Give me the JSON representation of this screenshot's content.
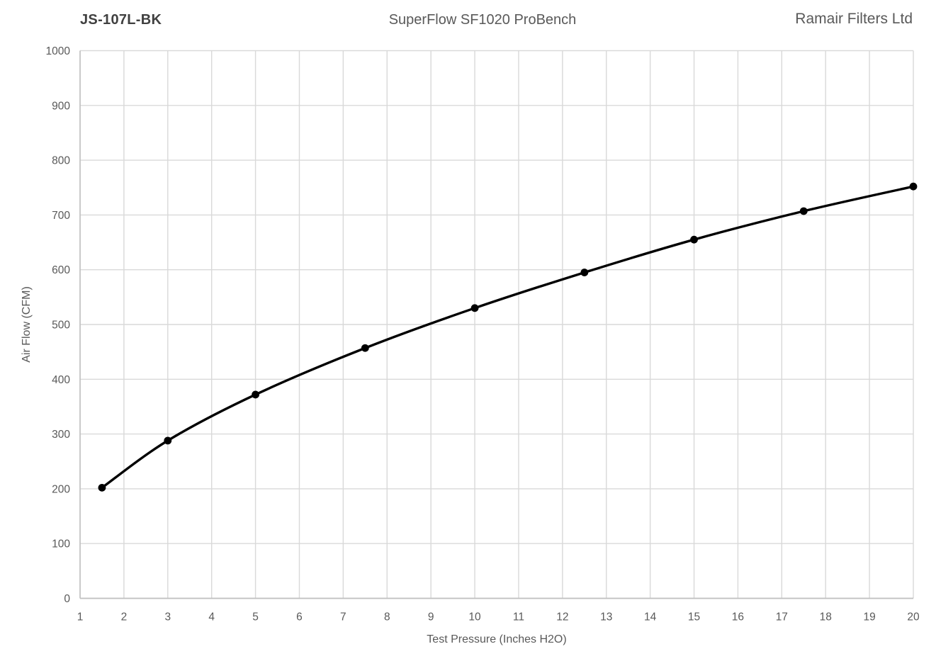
{
  "header": {
    "left_title": "JS-107L-BK",
    "center_title": "SuperFlow SF1020 ProBench",
    "right_title": "Ramair Filters Ltd"
  },
  "chart_data": {
    "type": "line",
    "title": "SuperFlow SF1020 ProBench",
    "xlabel": "Test Pressure (Inches H2O)",
    "ylabel": "Air Flow (CFM)",
    "xlim": [
      1,
      20
    ],
    "ylim": [
      0,
      1000
    ],
    "xticks": [
      1,
      2,
      3,
      4,
      5,
      6,
      7,
      8,
      9,
      10,
      11,
      12,
      13,
      14,
      15,
      16,
      17,
      18,
      19,
      20
    ],
    "yticks": [
      0,
      100,
      200,
      300,
      400,
      500,
      600,
      700,
      800,
      900,
      1000
    ],
    "grid": true,
    "legend": "none",
    "series": [
      {
        "x": [
          1.5,
          3,
          5,
          7.5,
          10,
          12.5,
          15,
          17.5,
          20
        ],
        "y": [
          202,
          288,
          372,
          457,
          530,
          595,
          655,
          707,
          752
        ],
        "line_color": "#000000",
        "marker": "circle",
        "marker_color": "#000000",
        "smooth": true
      }
    ],
    "colors": {
      "gridline": "#d9d9d9",
      "axis_line": "#c0c0c0",
      "background": "#ffffff"
    }
  }
}
